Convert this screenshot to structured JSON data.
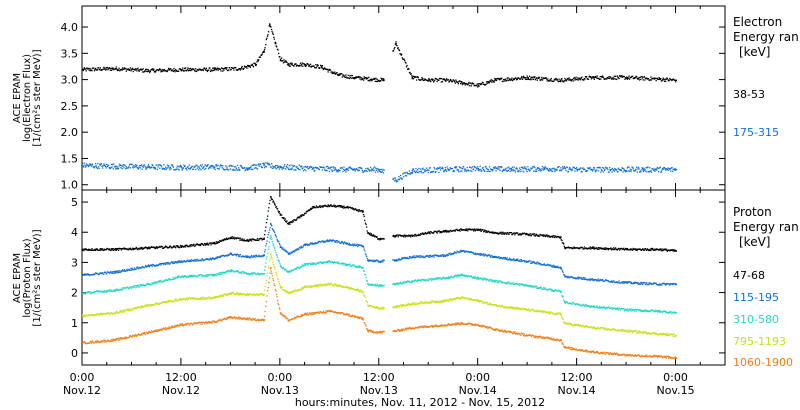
{
  "figure": {
    "xlabel": "hours:minutes, Nov. 11, 2012 - Nov. 15, 2012"
  },
  "chart_data": [
    {
      "type": "scatter",
      "x_unit": "hours from 2012-11-12 00:00",
      "xlim": [
        0,
        78
      ],
      "x_ticks": [
        {
          "x": 0,
          "time": "0:00",
          "date": "Nov.12"
        },
        {
          "x": 12,
          "time": "12:00",
          "date": "Nov.12"
        },
        {
          "x": 24,
          "time": "0:00",
          "date": "Nov.13"
        },
        {
          "x": 36,
          "time": "12:00",
          "date": "Nov.13"
        },
        {
          "x": 48,
          "time": "0:00",
          "date": "Nov.14"
        },
        {
          "x": 60,
          "time": "12:00",
          "date": "Nov.14"
        },
        {
          "x": 72,
          "time": "0:00",
          "date": "Nov.15"
        }
      ],
      "ylabel": [
        "ACE EPAM",
        "log(Electron Flux)",
        "[1/(cm²s ster MeV)]"
      ],
      "ylim": [
        0.9,
        4.4
      ],
      "y_ticks": [
        "1.0",
        "1.5",
        "2.0",
        "2.5",
        "3.0",
        "3.5",
        "4.0"
      ],
      "legend": {
        "title": [
          "Electron",
          "Energy ran",
          "[keV]"
        ],
        "placement": "right"
      },
      "series": [
        {
          "name": "38-53",
          "color": "#000000",
          "points": [
            [
              0,
              3.2
            ],
            [
              4,
              3.22
            ],
            [
              8,
              3.18
            ],
            [
              12,
              3.2
            ],
            [
              16,
              3.2
            ],
            [
              19,
              3.22
            ],
            [
              21,
              3.3
            ],
            [
              22,
              3.55
            ],
            [
              22.7,
              4.05
            ],
            [
              23.4,
              3.7
            ],
            [
              24,
              3.4
            ],
            [
              25,
              3.3
            ],
            [
              27,
              3.3
            ],
            [
              29,
              3.25
            ],
            [
              31,
              3.1
            ],
            [
              33,
              3.05
            ],
            [
              35,
              3.02
            ],
            [
              36.5,
              3.0
            ],
            [
              38,
              3.7
            ],
            [
              40,
              3.05
            ],
            [
              42,
              3.0
            ],
            [
              44,
              3.0
            ],
            [
              46,
              2.95
            ],
            [
              48,
              2.9
            ],
            [
              50,
              3.0
            ],
            [
              54,
              3.05
            ],
            [
              58,
              3.0
            ],
            [
              62,
              3.05
            ],
            [
              66,
              3.05
            ],
            [
              70,
              3.02
            ],
            [
              72,
              3.0
            ]
          ]
        },
        {
          "name": "175-315",
          "color": "#0f6fd2",
          "points": [
            [
              0,
              1.38
            ],
            [
              4,
              1.36
            ],
            [
              8,
              1.35
            ],
            [
              12,
              1.34
            ],
            [
              16,
              1.35
            ],
            [
              20,
              1.33
            ],
            [
              22,
              1.38
            ],
            [
              24,
              1.35
            ],
            [
              28,
              1.32
            ],
            [
              32,
              1.3
            ],
            [
              36,
              1.3
            ],
            [
              38,
              1.1
            ],
            [
              40,
              1.28
            ],
            [
              44,
              1.3
            ],
            [
              48,
              1.32
            ],
            [
              52,
              1.3
            ],
            [
              56,
              1.32
            ],
            [
              60,
              1.3
            ],
            [
              64,
              1.3
            ],
            [
              68,
              1.3
            ],
            [
              72,
              1.3
            ]
          ]
        }
      ]
    },
    {
      "type": "scatter",
      "x_unit": "hours from 2012-11-12 00:00",
      "xlim": [
        0,
        78
      ],
      "ylabel": [
        "ACE EPAM",
        "log(Proton Flux)",
        "[1/(cm²s ster MeV)]"
      ],
      "ylim": [
        -0.4,
        5.4
      ],
      "y_ticks": [
        "0",
        "1",
        "2",
        "3",
        "4",
        "5"
      ],
      "legend": {
        "title": [
          "Proton",
          "Energy ran",
          "[keV]"
        ],
        "placement": "right"
      },
      "series": [
        {
          "name": "47-68",
          "color": "#000000",
          "points": [
            [
              0,
              3.45
            ],
            [
              4,
              3.45
            ],
            [
              8,
              3.5
            ],
            [
              12,
              3.55
            ],
            [
              16,
              3.65
            ],
            [
              18,
              3.85
            ],
            [
              20,
              3.75
            ],
            [
              22,
              3.8
            ],
            [
              22.8,
              5.2
            ],
            [
              24,
              4.6
            ],
            [
              25,
              4.3
            ],
            [
              26.5,
              4.55
            ],
            [
              28,
              4.85
            ],
            [
              30,
              4.9
            ],
            [
              32,
              4.85
            ],
            [
              34,
              4.7
            ],
            [
              34.6,
              4.0
            ],
            [
              36,
              3.8
            ],
            [
              38,
              3.9
            ],
            [
              40,
              3.9
            ],
            [
              42,
              4.0
            ],
            [
              44,
              4.05
            ],
            [
              46,
              4.1
            ],
            [
              48,
              4.1
            ],
            [
              50,
              4.0
            ],
            [
              54,
              3.95
            ],
            [
              58,
              3.85
            ],
            [
              58.5,
              3.5
            ],
            [
              62,
              3.5
            ],
            [
              66,
              3.45
            ],
            [
              70,
              3.45
            ],
            [
              72,
              3.4
            ]
          ]
        },
        {
          "name": "115-195",
          "color": "#0f6fd2",
          "points": [
            [
              0,
              2.6
            ],
            [
              4,
              2.7
            ],
            [
              8,
              2.9
            ],
            [
              12,
              3.05
            ],
            [
              16,
              3.15
            ],
            [
              18,
              3.3
            ],
            [
              20,
              3.2
            ],
            [
              22,
              3.25
            ],
            [
              22.8,
              4.3
            ],
            [
              24,
              3.55
            ],
            [
              25,
              3.3
            ],
            [
              27,
              3.6
            ],
            [
              30,
              3.75
            ],
            [
              32,
              3.65
            ],
            [
              34,
              3.55
            ],
            [
              34.6,
              3.1
            ],
            [
              36,
              3.05
            ],
            [
              38,
              3.1
            ],
            [
              40,
              3.2
            ],
            [
              44,
              3.25
            ],
            [
              46,
              3.4
            ],
            [
              48,
              3.3
            ],
            [
              50,
              3.2
            ],
            [
              54,
              3.05
            ],
            [
              58,
              2.85
            ],
            [
              58.5,
              2.55
            ],
            [
              62,
              2.45
            ],
            [
              66,
              2.35
            ],
            [
              70,
              2.3
            ],
            [
              72,
              2.3
            ]
          ]
        },
        {
          "name": "310-580",
          "color": "#22d8c6",
          "points": [
            [
              0,
              2.0
            ],
            [
              4,
              2.1
            ],
            [
              8,
              2.3
            ],
            [
              12,
              2.55
            ],
            [
              16,
              2.6
            ],
            [
              18,
              2.75
            ],
            [
              20,
              2.65
            ],
            [
              22,
              2.65
            ],
            [
              22.8,
              3.9
            ],
            [
              24,
              2.9
            ],
            [
              25,
              2.7
            ],
            [
              27,
              2.95
            ],
            [
              30,
              3.05
            ],
            [
              32,
              2.95
            ],
            [
              34,
              2.85
            ],
            [
              34.6,
              2.3
            ],
            [
              36,
              2.25
            ],
            [
              38,
              2.3
            ],
            [
              40,
              2.4
            ],
            [
              44,
              2.5
            ],
            [
              46,
              2.6
            ],
            [
              48,
              2.5
            ],
            [
              50,
              2.4
            ],
            [
              54,
              2.25
            ],
            [
              58,
              2.05
            ],
            [
              58.5,
              1.7
            ],
            [
              62,
              1.55
            ],
            [
              66,
              1.45
            ],
            [
              70,
              1.4
            ],
            [
              72,
              1.35
            ]
          ]
        },
        {
          "name": "795-1193",
          "color": "#c8e016",
          "points": [
            [
              0,
              1.25
            ],
            [
              4,
              1.35
            ],
            [
              8,
              1.6
            ],
            [
              12,
              1.8
            ],
            [
              16,
              1.85
            ],
            [
              18,
              2.0
            ],
            [
              20,
              1.95
            ],
            [
              22,
              1.95
            ],
            [
              22.8,
              3.3
            ],
            [
              24,
              2.2
            ],
            [
              25,
              2.0
            ],
            [
              27,
              2.2
            ],
            [
              30,
              2.3
            ],
            [
              32,
              2.2
            ],
            [
              34,
              2.05
            ],
            [
              34.6,
              1.6
            ],
            [
              36,
              1.5
            ],
            [
              38,
              1.55
            ],
            [
              40,
              1.65
            ],
            [
              44,
              1.75
            ],
            [
              46,
              1.85
            ],
            [
              48,
              1.75
            ],
            [
              50,
              1.6
            ],
            [
              54,
              1.45
            ],
            [
              58,
              1.3
            ],
            [
              58.5,
              1.0
            ],
            [
              62,
              0.85
            ],
            [
              66,
              0.75
            ],
            [
              70,
              0.65
            ],
            [
              72,
              0.6
            ]
          ]
        },
        {
          "name": "1060-1900",
          "color": "#f07d14",
          "points": [
            [
              0,
              0.35
            ],
            [
              4,
              0.45
            ],
            [
              8,
              0.7
            ],
            [
              12,
              0.95
            ],
            [
              16,
              1.05
            ],
            [
              18,
              1.2
            ],
            [
              20,
              1.15
            ],
            [
              22,
              1.1
            ],
            [
              22.8,
              2.85
            ],
            [
              24,
              1.35
            ],
            [
              25,
              1.1
            ],
            [
              27,
              1.3
            ],
            [
              30,
              1.4
            ],
            [
              32,
              1.3
            ],
            [
              34,
              1.15
            ],
            [
              34.6,
              0.75
            ],
            [
              36,
              0.7
            ],
            [
              38,
              0.75
            ],
            [
              40,
              0.85
            ],
            [
              44,
              0.95
            ],
            [
              46,
              1.0
            ],
            [
              48,
              0.95
            ],
            [
              50,
              0.8
            ],
            [
              54,
              0.6
            ],
            [
              58,
              0.45
            ],
            [
              58.5,
              0.2
            ],
            [
              62,
              0.05
            ],
            [
              66,
              -0.05
            ],
            [
              70,
              -0.1
            ],
            [
              72,
              -0.15
            ]
          ]
        }
      ]
    }
  ]
}
